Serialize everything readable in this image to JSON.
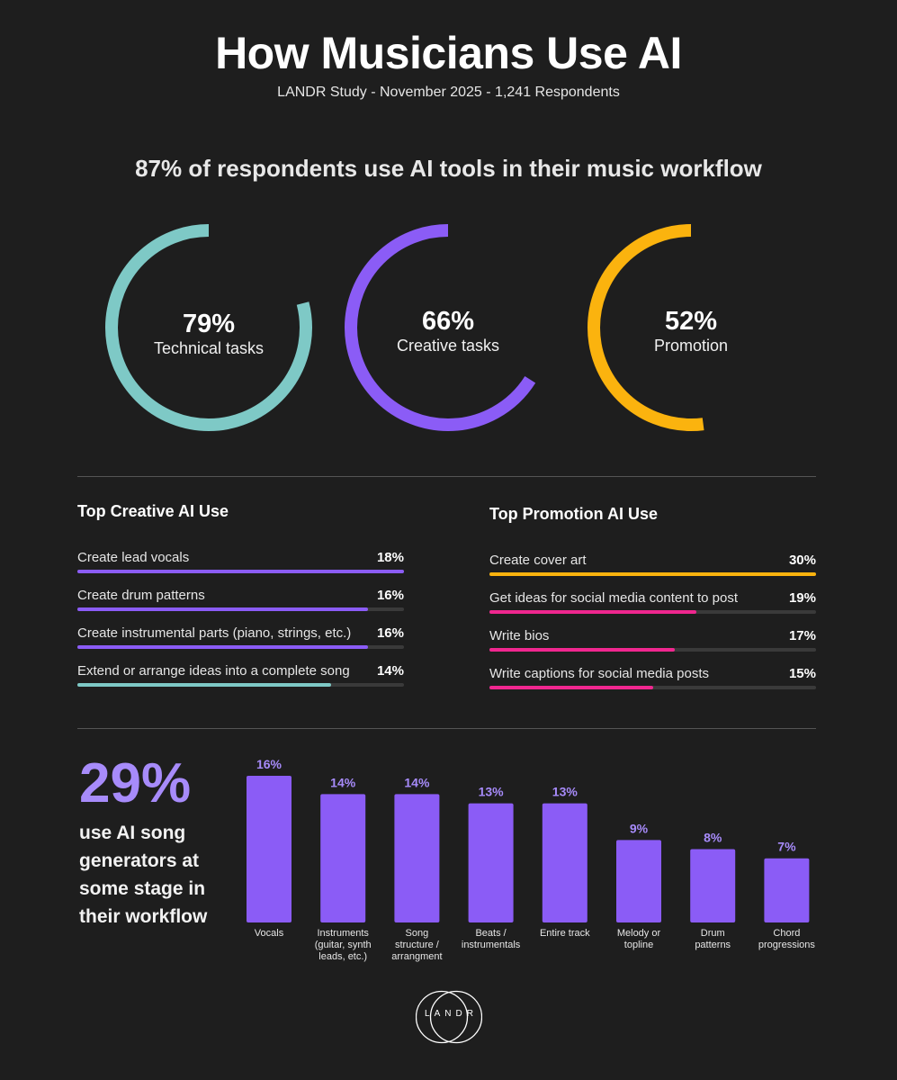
{
  "header": {
    "title": "How Musicians Use AI",
    "subtitle": "LANDR Study - November 2025 - 1,241 Respondents"
  },
  "headline": "87% of respondents use AI tools in their music workflow",
  "rings": [
    {
      "value": 79,
      "pct_label": "79%",
      "label": "Technical tasks",
      "color": "#7ec9c6"
    },
    {
      "value": 66,
      "pct_label": "66%",
      "label": "Creative tasks",
      "color": "#8b5cf6"
    },
    {
      "value": 52,
      "pct_label": "52%",
      "label": "Promotion",
      "color": "#fbb30e"
    }
  ],
  "creative": {
    "title": "Top Creative AI Use",
    "max": 18,
    "items": [
      {
        "label": "Create lead vocals",
        "value": 18,
        "pct_label": "18%",
        "color": "#8b5cf6"
      },
      {
        "label": "Create drum patterns",
        "value": 16,
        "pct_label": "16%",
        "color": "#8b5cf6"
      },
      {
        "label": "Create instrumental parts (piano, strings, etc.)",
        "value": 16,
        "pct_label": "16%",
        "color": "#8b5cf6"
      },
      {
        "label": "Extend or arrange ideas into a complete song",
        "value": 14,
        "pct_label": "14%",
        "color": "#7ec9c6"
      }
    ]
  },
  "promotion": {
    "title": "Top Promotion AI Use",
    "max": 30,
    "items": [
      {
        "label": "Create cover art",
        "value": 30,
        "pct_label": "30%",
        "color": "#fbb30e"
      },
      {
        "label": "Get ideas for social media content to post",
        "value": 19,
        "pct_label": "19%",
        "color": "#f0278f"
      },
      {
        "label": "Write bios",
        "value": 17,
        "pct_label": "17%",
        "color": "#f0278f"
      },
      {
        "label": "Write captions for social media posts",
        "value": 15,
        "pct_label": "15%",
        "color": "#f0278f"
      }
    ]
  },
  "generators": {
    "big_pct": "29%",
    "caption": "use AI song generators at some stage in their workflow"
  },
  "chart_data": {
    "type": "bar",
    "categories": [
      [
        "Vocals"
      ],
      [
        "Instruments",
        "(guitar, synth",
        "leads, etc.)"
      ],
      [
        "Song",
        "structure /",
        "arrangment"
      ],
      [
        "Beats /",
        "instrumentals"
      ],
      [
        "Entire track"
      ],
      [
        "Melody or",
        "topline"
      ],
      [
        "Drum",
        "patterns"
      ],
      [
        "Chord",
        "progressions"
      ]
    ],
    "values": [
      16,
      14,
      14,
      13,
      13,
      9,
      8,
      7
    ],
    "value_labels": [
      "16%",
      "14%",
      "14%",
      "13%",
      "13%",
      "9%",
      "8%",
      "7%"
    ],
    "title": "",
    "xlabel": "",
    "ylabel": "",
    "ylim": [
      0,
      16
    ],
    "grid": false,
    "color": "#8b5cf6"
  },
  "colors": {
    "background": "#1e1e1e",
    "teal": "#7ec9c6",
    "purple": "#8b5cf6",
    "light_purple": "#a78bfa",
    "yellow": "#fbb30e",
    "pink": "#f0278f"
  },
  "logo": {
    "text": "LANDR",
    "icon": "landr-logo-icon"
  }
}
